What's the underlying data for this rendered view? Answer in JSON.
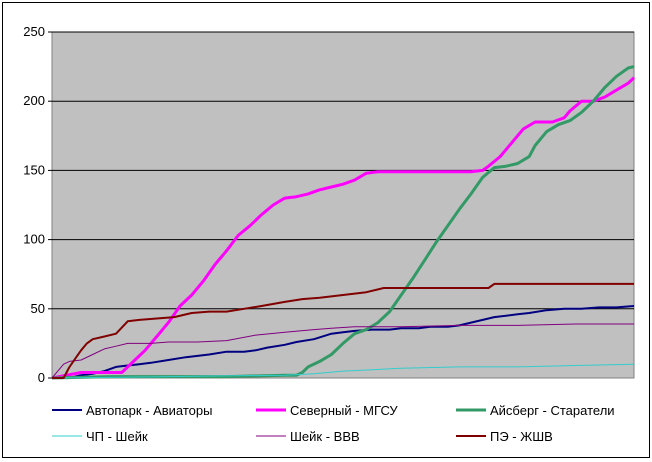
{
  "chart_data": {
    "type": "line",
    "title": "",
    "xlabel": "",
    "ylabel": "",
    "ylim": [
      0,
      250
    ],
    "yticks": [
      0,
      50,
      100,
      150,
      200,
      250
    ],
    "xlim": [
      0,
      100
    ],
    "grid": "horizontal",
    "legend_position": "bottom",
    "plot_background": "#c0c0c0",
    "series": [
      {
        "name": "Автопарк - Авиаторы",
        "color": "#000080",
        "width": 2,
        "points": [
          [
            0,
            0
          ],
          [
            3,
            0
          ],
          [
            5,
            2
          ],
          [
            7,
            3
          ],
          [
            9,
            5
          ],
          [
            11,
            8
          ],
          [
            13,
            9
          ],
          [
            15,
            10
          ],
          [
            17,
            11
          ],
          [
            20,
            13
          ],
          [
            23,
            15
          ],
          [
            25,
            16
          ],
          [
            27,
            17
          ],
          [
            30,
            19
          ],
          [
            33,
            19
          ],
          [
            35,
            20
          ],
          [
            37,
            22
          ],
          [
            40,
            24
          ],
          [
            42,
            26
          ],
          [
            45,
            28
          ],
          [
            48,
            32
          ],
          [
            50,
            33
          ],
          [
            52,
            34
          ],
          [
            55,
            35
          ],
          [
            58,
            35
          ],
          [
            60,
            36
          ],
          [
            63,
            36
          ],
          [
            65,
            37
          ],
          [
            68,
            37
          ],
          [
            70,
            38
          ],
          [
            72,
            40
          ],
          [
            74,
            42
          ],
          [
            76,
            44
          ],
          [
            78,
            45
          ],
          [
            80,
            46
          ],
          [
            82,
            47
          ],
          [
            85,
            49
          ],
          [
            88,
            50
          ],
          [
            91,
            50
          ],
          [
            94,
            51
          ],
          [
            97,
            51
          ],
          [
            100,
            52
          ]
        ]
      },
      {
        "name": "Северный - МГСУ",
        "color": "#ff00ff",
        "width": 3,
        "points": [
          [
            0,
            0
          ],
          [
            5,
            4
          ],
          [
            8,
            4
          ],
          [
            12,
            4
          ],
          [
            14,
            12
          ],
          [
            16,
            20
          ],
          [
            18,
            30
          ],
          [
            20,
            40
          ],
          [
            22,
            52
          ],
          [
            24,
            60
          ],
          [
            26,
            70
          ],
          [
            28,
            82
          ],
          [
            30,
            92
          ],
          [
            32,
            103
          ],
          [
            34,
            110
          ],
          [
            36,
            118
          ],
          [
            38,
            125
          ],
          [
            40,
            130
          ],
          [
            42,
            131
          ],
          [
            44,
            133
          ],
          [
            46,
            136
          ],
          [
            48,
            138
          ],
          [
            50,
            140
          ],
          [
            52,
            143
          ],
          [
            54,
            148
          ],
          [
            56,
            149
          ],
          [
            60,
            149
          ],
          [
            65,
            149
          ],
          [
            70,
            149
          ],
          [
            72,
            149
          ],
          [
            74,
            150
          ],
          [
            75,
            153
          ],
          [
            77,
            160
          ],
          [
            79,
            170
          ],
          [
            81,
            180
          ],
          [
            83,
            185
          ],
          [
            86,
            185
          ],
          [
            88,
            188
          ],
          [
            89,
            193
          ],
          [
            91,
            200
          ],
          [
            93,
            200
          ],
          [
            95,
            203
          ],
          [
            97,
            208
          ],
          [
            99,
            213
          ],
          [
            100,
            217
          ]
        ]
      },
      {
        "name": "Айсберг - Старатели",
        "color": "#339966",
        "width": 3,
        "points": [
          [
            0,
            0
          ],
          [
            10,
            1
          ],
          [
            20,
            1
          ],
          [
            30,
            1
          ],
          [
            40,
            2
          ],
          [
            42,
            2
          ],
          [
            43,
            4
          ],
          [
            44,
            8
          ],
          [
            46,
            12
          ],
          [
            48,
            17
          ],
          [
            50,
            25
          ],
          [
            52,
            32
          ],
          [
            54,
            35
          ],
          [
            56,
            40
          ],
          [
            58,
            48
          ],
          [
            60,
            60
          ],
          [
            62,
            72
          ],
          [
            64,
            85
          ],
          [
            66,
            98
          ],
          [
            68,
            110
          ],
          [
            70,
            122
          ],
          [
            72,
            133
          ],
          [
            74,
            145
          ],
          [
            76,
            152
          ],
          [
            78,
            153
          ],
          [
            80,
            155
          ],
          [
            82,
            160
          ],
          [
            83,
            168
          ],
          [
            85,
            178
          ],
          [
            87,
            183
          ],
          [
            89,
            186
          ],
          [
            91,
            192
          ],
          [
            93,
            200
          ],
          [
            95,
            210
          ],
          [
            97,
            218
          ],
          [
            99,
            224
          ],
          [
            100,
            225
          ]
        ]
      },
      {
        "name": "ЧП - Шейк",
        "color": "#33cccc",
        "width": 1,
        "points": [
          [
            0,
            0
          ],
          [
            20,
            1
          ],
          [
            40,
            2
          ],
          [
            45,
            3
          ],
          [
            50,
            5
          ],
          [
            55,
            6
          ],
          [
            60,
            7
          ],
          [
            70,
            8
          ],
          [
            80,
            8
          ],
          [
            90,
            9
          ],
          [
            100,
            10
          ]
        ]
      },
      {
        "name": "Шейк - ВВВ",
        "color": "#800080",
        "width": 1,
        "points": [
          [
            0,
            0
          ],
          [
            1,
            5
          ],
          [
            2,
            10
          ],
          [
            3,
            12
          ],
          [
            5,
            13
          ],
          [
            7,
            17
          ],
          [
            9,
            21
          ],
          [
            11,
            23
          ],
          [
            13,
            25
          ],
          [
            17,
            25
          ],
          [
            20,
            26
          ],
          [
            25,
            26
          ],
          [
            30,
            27
          ],
          [
            35,
            31
          ],
          [
            40,
            33
          ],
          [
            45,
            35
          ],
          [
            48,
            36
          ],
          [
            52,
            37
          ],
          [
            55,
            37
          ],
          [
            60,
            37
          ],
          [
            70,
            38
          ],
          [
            80,
            38
          ],
          [
            90,
            39
          ],
          [
            100,
            39
          ]
        ]
      },
      {
        "name": "ПЭ - ЖШВ",
        "color": "#800000",
        "width": 2,
        "points": [
          [
            0,
            0
          ],
          [
            2,
            0
          ],
          [
            3,
            8
          ],
          [
            4,
            14
          ],
          [
            5,
            20
          ],
          [
            6,
            25
          ],
          [
            7,
            28
          ],
          [
            9,
            30
          ],
          [
            11,
            32
          ],
          [
            13,
            41
          ],
          [
            15,
            42
          ],
          [
            18,
            43
          ],
          [
            21,
            44
          ],
          [
            24,
            47
          ],
          [
            27,
            48
          ],
          [
            30,
            48
          ],
          [
            33,
            50
          ],
          [
            36,
            52
          ],
          [
            40,
            55
          ],
          [
            43,
            57
          ],
          [
            46,
            58
          ],
          [
            50,
            60
          ],
          [
            54,
            62
          ],
          [
            57,
            65
          ],
          [
            60,
            65
          ],
          [
            65,
            65
          ],
          [
            70,
            65
          ],
          [
            75,
            65
          ],
          [
            76,
            68
          ],
          [
            80,
            68
          ],
          [
            90,
            68
          ],
          [
            100,
            68
          ]
        ]
      }
    ]
  }
}
